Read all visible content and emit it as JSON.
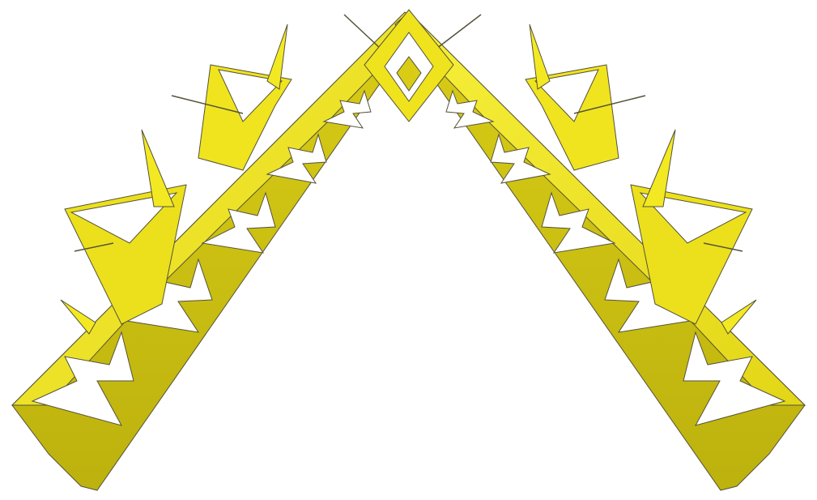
{
  "image": {
    "subject": "fractal-star-arch-render",
    "colors": {
      "background": "#ffffff",
      "face_bright": "#f2e81e",
      "face_mid": "#e6d919",
      "face_dark": "#cbbf12",
      "face_shadow": "#b3a80d",
      "edge": "#55523a",
      "cutout": "#ffffff"
    }
  }
}
